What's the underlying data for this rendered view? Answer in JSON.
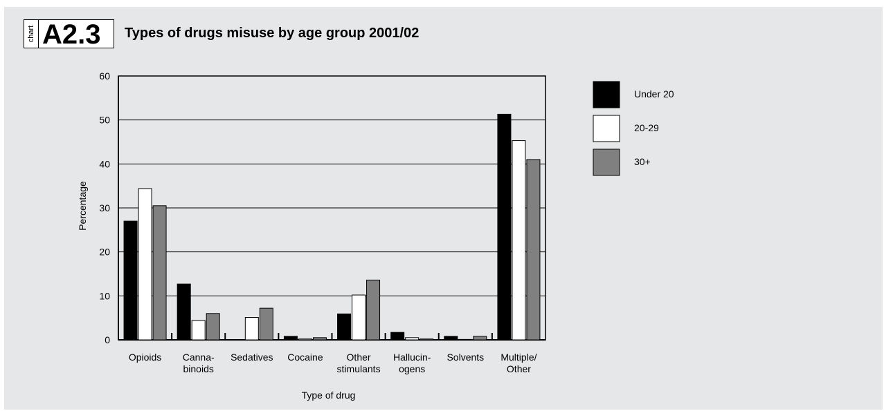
{
  "header": {
    "badge_tag": "chart",
    "badge_code": "A2.3"
  },
  "chart_data": {
    "type": "bar",
    "title": "Types of drugs misuse by age group 2001/02",
    "xlabel": "Type of drug",
    "ylabel": "Percentage",
    "ylim": [
      0,
      60
    ],
    "yticks": [
      0,
      10,
      20,
      30,
      40,
      50,
      60
    ],
    "grid": true,
    "legend_position": "right",
    "categories": [
      [
        "Opioids"
      ],
      [
        "Canna-",
        "binoids"
      ],
      [
        "Sedatives"
      ],
      [
        "Cocaine"
      ],
      [
        "Other",
        "stimulants"
      ],
      [
        "Hallucin-",
        "ogens"
      ],
      [
        "Solvents"
      ],
      [
        "Multiple/",
        "Other"
      ]
    ],
    "series": [
      {
        "name": "Under 20",
        "color": "#000000",
        "values": [
          27,
          12.7,
          0,
          0.8,
          5.9,
          1.7,
          0.8,
          51.3
        ]
      },
      {
        "name": "20-29",
        "color": "#ffffff",
        "values": [
          34.4,
          4.4,
          5.1,
          0.2,
          10.2,
          0.5,
          0.1,
          45.3
        ]
      },
      {
        "name": "30+",
        "color": "#808080",
        "values": [
          30.5,
          6,
          7.2,
          0.5,
          13.6,
          0.2,
          0.8,
          41
        ]
      }
    ]
  }
}
